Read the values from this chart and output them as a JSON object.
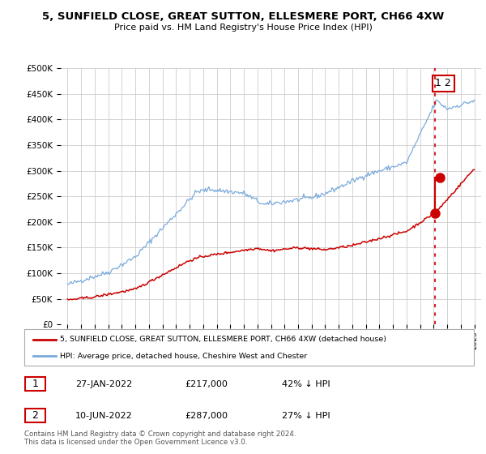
{
  "title": "5, SUNFIELD CLOSE, GREAT SUTTON, ELLESMERE PORT, CH66 4XW",
  "subtitle": "Price paid vs. HM Land Registry's House Price Index (HPI)",
  "hpi_color": "#7aabdc",
  "price_color": "#cc0000",
  "ylim": [
    0,
    500000
  ],
  "yticks": [
    0,
    50000,
    100000,
    150000,
    200000,
    250000,
    300000,
    350000,
    400000,
    450000,
    500000
  ],
  "xlim_start": 1994.5,
  "xlim_end": 2025.5,
  "t1_year": 2022.07,
  "t1_price": 217000,
  "t2_year": 2022.45,
  "t2_price": 287000,
  "legend_line1": "5, SUNFIELD CLOSE, GREAT SUTTON, ELLESMERE PORT, CH66 4XW (detached house)",
  "legend_line2": "HPI: Average price, detached house, Cheshire West and Chester",
  "table_row1": [
    "1",
    "27-JAN-2022",
    "£217,000",
    "42% ↓ HPI"
  ],
  "table_row2": [
    "2",
    "10-JUN-2022",
    "£287,000",
    "27% ↓ HPI"
  ],
  "footnote": "Contains HM Land Registry data © Crown copyright and database right 2024.\nThis data is licensed under the Open Government Licence v3.0.",
  "bg_color": "#ffffff",
  "grid_color": "#cccccc"
}
